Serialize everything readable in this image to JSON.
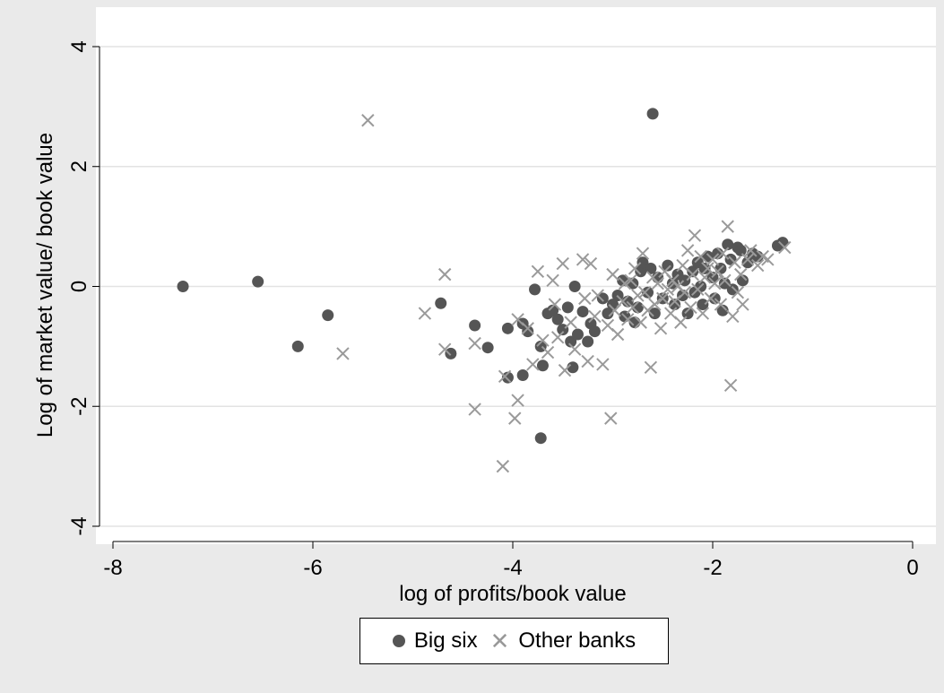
{
  "chart_data": {
    "type": "scatter",
    "title": "",
    "xlabel": "log of profits/book value",
    "ylabel": "Log of market value/ book value",
    "xlim": [
      -8,
      0
    ],
    "ylim": [
      -4,
      4
    ],
    "xticks": [
      "-8",
      "-6",
      "-4",
      "-2",
      "0"
    ],
    "yticks": [
      "-4",
      "-2",
      "0",
      "2",
      "4"
    ],
    "grid": "horizontal",
    "legend_position": "bottom",
    "colors": {
      "big_six": "#555555",
      "other_banks": "#9a9a9a",
      "background": "#eaeaea",
      "plot": "#ffffff",
      "grid": "#e3e3e3"
    },
    "series": [
      {
        "name": "Big six",
        "marker": "circle",
        "points": [
          [
            -7.3,
            0.0
          ],
          [
            -6.55,
            0.08
          ],
          [
            -6.15,
            -1.0
          ],
          [
            -5.85,
            -0.48
          ],
          [
            -4.72,
            -0.28
          ],
          [
            -4.62,
            -1.12
          ],
          [
            -4.38,
            -0.65
          ],
          [
            -4.25,
            -1.02
          ],
          [
            -4.05,
            -0.7
          ],
          [
            -4.05,
            -1.52
          ],
          [
            -3.9,
            -0.62
          ],
          [
            -3.9,
            -1.48
          ],
          [
            -3.85,
            -0.75
          ],
          [
            -3.78,
            -0.05
          ],
          [
            -3.72,
            -1.0
          ],
          [
            -3.7,
            -1.32
          ],
          [
            -3.72,
            -2.53
          ],
          [
            -3.65,
            -0.45
          ],
          [
            -3.6,
            -0.4
          ],
          [
            -3.55,
            -0.55
          ],
          [
            -3.5,
            -0.72
          ],
          [
            -3.45,
            -0.35
          ],
          [
            -3.42,
            -0.92
          ],
          [
            -3.4,
            -1.35
          ],
          [
            -3.38,
            0.0
          ],
          [
            -3.35,
            -0.8
          ],
          [
            -3.3,
            -0.42
          ],
          [
            -3.25,
            -0.92
          ],
          [
            -3.22,
            -0.62
          ],
          [
            -3.18,
            -0.75
          ],
          [
            -3.1,
            -0.2
          ],
          [
            -3.05,
            -0.45
          ],
          [
            -3.0,
            -0.3
          ],
          [
            -2.95,
            -0.15
          ],
          [
            -2.9,
            0.1
          ],
          [
            -2.88,
            -0.5
          ],
          [
            -2.85,
            -0.25
          ],
          [
            -2.8,
            0.05
          ],
          [
            -2.78,
            -0.6
          ],
          [
            -2.75,
            -0.35
          ],
          [
            -2.72,
            0.25
          ],
          [
            -2.7,
            0.4
          ],
          [
            -2.65,
            -0.1
          ],
          [
            -2.62,
            0.3
          ],
          [
            -2.6,
            2.88
          ],
          [
            -2.58,
            -0.45
          ],
          [
            -2.55,
            0.15
          ],
          [
            -2.5,
            -0.2
          ],
          [
            -2.45,
            0.35
          ],
          [
            -2.4,
            0.05
          ],
          [
            -2.38,
            -0.3
          ],
          [
            -2.35,
            0.2
          ],
          [
            -2.3,
            -0.15
          ],
          [
            -2.28,
            0.1
          ],
          [
            -2.25,
            -0.45
          ],
          [
            -2.2,
            0.25
          ],
          [
            -2.18,
            -0.1
          ],
          [
            -2.15,
            0.4
          ],
          [
            -2.12,
            0.0
          ],
          [
            -2.1,
            -0.3
          ],
          [
            -2.08,
            0.3
          ],
          [
            -2.05,
            0.5
          ],
          [
            -2.0,
            0.15
          ],
          [
            -1.98,
            -0.2
          ],
          [
            -1.95,
            0.55
          ],
          [
            -1.92,
            0.3
          ],
          [
            -1.9,
            -0.4
          ],
          [
            -1.88,
            0.05
          ],
          [
            -1.85,
            0.7
          ],
          [
            -1.82,
            0.45
          ],
          [
            -1.8,
            -0.05
          ],
          [
            -1.75,
            0.65
          ],
          [
            -1.72,
            0.6
          ],
          [
            -1.7,
            0.1
          ],
          [
            -1.65,
            0.4
          ],
          [
            -1.6,
            0.55
          ],
          [
            -1.55,
            0.5
          ],
          [
            -1.35,
            0.68
          ],
          [
            -1.3,
            0.73
          ]
        ]
      },
      {
        "name": "Other banks",
        "marker": "x",
        "points": [
          [
            -5.45,
            2.77
          ],
          [
            -5.7,
            -1.12
          ],
          [
            -4.88,
            -0.45
          ],
          [
            -4.68,
            0.2
          ],
          [
            -4.68,
            -1.05
          ],
          [
            -4.38,
            -0.95
          ],
          [
            -4.38,
            -2.05
          ],
          [
            -4.1,
            -3.0
          ],
          [
            -4.08,
            -1.5
          ],
          [
            -3.98,
            -2.2
          ],
          [
            -3.95,
            -1.9
          ],
          [
            -3.95,
            -0.55
          ],
          [
            -3.85,
            -0.7
          ],
          [
            -3.8,
            -1.3
          ],
          [
            -3.75,
            0.25
          ],
          [
            -3.7,
            -0.9
          ],
          [
            -3.65,
            -1.1
          ],
          [
            -3.6,
            0.1
          ],
          [
            -3.58,
            -0.3
          ],
          [
            -3.55,
            -0.85
          ],
          [
            -3.5,
            0.38
          ],
          [
            -3.48,
            -1.4
          ],
          [
            -3.42,
            -0.6
          ],
          [
            -3.38,
            -1.05
          ],
          [
            -3.3,
            0.45
          ],
          [
            -3.28,
            -0.2
          ],
          [
            -3.25,
            -1.25
          ],
          [
            -3.22,
            0.38
          ],
          [
            -3.18,
            -0.5
          ],
          [
            -3.15,
            -0.15
          ],
          [
            -3.1,
            -1.3
          ],
          [
            -3.05,
            -0.65
          ],
          [
            -3.02,
            -2.2
          ],
          [
            -3.0,
            0.2
          ],
          [
            -2.98,
            -0.4
          ],
          [
            -2.95,
            -0.8
          ],
          [
            -2.9,
            -0.25
          ],
          [
            -2.88,
            0.05
          ],
          [
            -2.85,
            -0.55
          ],
          [
            -2.82,
            0.1
          ],
          [
            -2.8,
            -0.35
          ],
          [
            -2.78,
            0.3
          ],
          [
            -2.75,
            -0.15
          ],
          [
            -2.72,
            -0.6
          ],
          [
            -2.7,
            0.55
          ],
          [
            -2.68,
            -0.1
          ],
          [
            -2.65,
            -0.4
          ],
          [
            -2.62,
            -1.35
          ],
          [
            -2.6,
            0.15
          ],
          [
            -2.58,
            -0.3
          ],
          [
            -2.55,
            0.05
          ],
          [
            -2.52,
            -0.7
          ],
          [
            -2.5,
            -0.2
          ],
          [
            -2.48,
            0.25
          ],
          [
            -2.45,
            -0.05
          ],
          [
            -2.42,
            -0.45
          ],
          [
            -2.4,
            0.1
          ],
          [
            -2.38,
            -0.25
          ],
          [
            -2.35,
            0.0
          ],
          [
            -2.32,
            -0.6
          ],
          [
            -2.3,
            0.35
          ],
          [
            -2.28,
            -0.1
          ],
          [
            -2.25,
            0.6
          ],
          [
            -2.22,
            -0.35
          ],
          [
            -2.2,
            0.2
          ],
          [
            -2.18,
            0.85
          ],
          [
            -2.15,
            -0.05
          ],
          [
            -2.12,
            0.5
          ],
          [
            -2.1,
            -0.45
          ],
          [
            -2.08,
            0.15
          ],
          [
            -2.05,
            0.3
          ],
          [
            -2.02,
            -0.2
          ],
          [
            -2.0,
            0.45
          ],
          [
            -1.98,
            0.05
          ],
          [
            -1.95,
            0.25
          ],
          [
            -1.92,
            -0.3
          ],
          [
            -1.9,
            0.55
          ],
          [
            -1.88,
            0.1
          ],
          [
            -1.85,
            1.0
          ],
          [
            -1.82,
            -1.65
          ],
          [
            -1.8,
            -0.5
          ],
          [
            -1.78,
            0.4
          ],
          [
            -1.75,
            -0.1
          ],
          [
            -1.72,
            0.2
          ],
          [
            -1.7,
            -0.3
          ],
          [
            -1.65,
            0.45
          ],
          [
            -1.62,
            0.6
          ],
          [
            -1.55,
            0.35
          ],
          [
            -1.5,
            0.5
          ],
          [
            -1.45,
            0.45
          ],
          [
            -1.28,
            0.65
          ]
        ]
      }
    ]
  }
}
